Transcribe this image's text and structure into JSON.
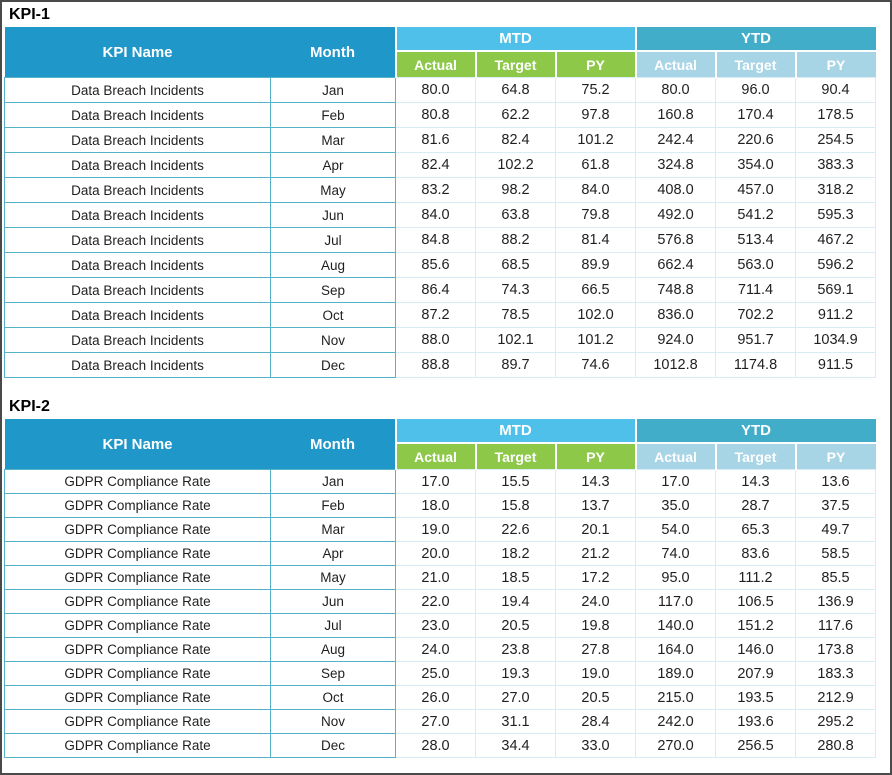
{
  "tables": [
    {
      "section_label": "KPI-1",
      "headers": {
        "kpi_name": "KPI Name",
        "month": "Month",
        "mtd": "MTD",
        "ytd": "YTD",
        "sub": [
          "Actual",
          "Target",
          "PY"
        ]
      },
      "rows": [
        {
          "kpi": "Data Breach Incidents",
          "month": "Jan",
          "values": [
            "80.0",
            "64.8",
            "75.2",
            "80.0",
            "96.0",
            "90.4"
          ]
        },
        {
          "kpi": "Data Breach Incidents",
          "month": "Feb",
          "values": [
            "80.8",
            "62.2",
            "97.8",
            "160.8",
            "170.4",
            "178.5"
          ]
        },
        {
          "kpi": "Data Breach Incidents",
          "month": "Mar",
          "values": [
            "81.6",
            "82.4",
            "101.2",
            "242.4",
            "220.6",
            "254.5"
          ]
        },
        {
          "kpi": "Data Breach Incidents",
          "month": "Apr",
          "values": [
            "82.4",
            "102.2",
            "61.8",
            "324.8",
            "354.0",
            "383.3"
          ]
        },
        {
          "kpi": "Data Breach Incidents",
          "month": "May",
          "values": [
            "83.2",
            "98.2",
            "84.0",
            "408.0",
            "457.0",
            "318.2"
          ]
        },
        {
          "kpi": "Data Breach Incidents",
          "month": "Jun",
          "values": [
            "84.0",
            "63.8",
            "79.8",
            "492.0",
            "541.2",
            "595.3"
          ]
        },
        {
          "kpi": "Data Breach Incidents",
          "month": "Jul",
          "values": [
            "84.8",
            "88.2",
            "81.4",
            "576.8",
            "513.4",
            "467.2"
          ]
        },
        {
          "kpi": "Data Breach Incidents",
          "month": "Aug",
          "values": [
            "85.6",
            "68.5",
            "89.9",
            "662.4",
            "563.0",
            "596.2"
          ]
        },
        {
          "kpi": "Data Breach Incidents",
          "month": "Sep",
          "values": [
            "86.4",
            "74.3",
            "66.5",
            "748.8",
            "711.4",
            "569.1"
          ]
        },
        {
          "kpi": "Data Breach Incidents",
          "month": "Oct",
          "values": [
            "87.2",
            "78.5",
            "102.0",
            "836.0",
            "702.2",
            "911.2"
          ]
        },
        {
          "kpi": "Data Breach Incidents",
          "month": "Nov",
          "values": [
            "88.0",
            "102.1",
            "101.2",
            "924.0",
            "951.7",
            "1034.9"
          ]
        },
        {
          "kpi": "Data Breach Incidents",
          "month": "Dec",
          "values": [
            "88.8",
            "89.7",
            "74.6",
            "1012.8",
            "1174.8",
            "911.5"
          ]
        }
      ]
    },
    {
      "section_label": "KPI-2",
      "headers": {
        "kpi_name": "KPI Name",
        "month": "Month",
        "mtd": "MTD",
        "ytd": "YTD",
        "sub": [
          "Actual",
          "Target",
          "PY"
        ]
      },
      "rows": [
        {
          "kpi": "GDPR Compliance Rate",
          "month": "Jan",
          "values": [
            "17.0",
            "15.5",
            "14.3",
            "17.0",
            "14.3",
            "13.6"
          ]
        },
        {
          "kpi": "GDPR Compliance Rate",
          "month": "Feb",
          "values": [
            "18.0",
            "15.8",
            "13.7",
            "35.0",
            "28.7",
            "37.5"
          ]
        },
        {
          "kpi": "GDPR Compliance Rate",
          "month": "Mar",
          "values": [
            "19.0",
            "22.6",
            "20.1",
            "54.0",
            "65.3",
            "49.7"
          ]
        },
        {
          "kpi": "GDPR Compliance Rate",
          "month": "Apr",
          "values": [
            "20.0",
            "18.2",
            "21.2",
            "74.0",
            "83.6",
            "58.5"
          ]
        },
        {
          "kpi": "GDPR Compliance Rate",
          "month": "May",
          "values": [
            "21.0",
            "18.5",
            "17.2",
            "95.0",
            "111.2",
            "85.5"
          ]
        },
        {
          "kpi": "GDPR Compliance Rate",
          "month": "Jun",
          "values": [
            "22.0",
            "19.4",
            "24.0",
            "117.0",
            "106.5",
            "136.9"
          ]
        },
        {
          "kpi": "GDPR Compliance Rate",
          "month": "Jul",
          "values": [
            "23.0",
            "20.5",
            "19.8",
            "140.0",
            "151.2",
            "117.6"
          ]
        },
        {
          "kpi": "GDPR Compliance Rate",
          "month": "Aug",
          "values": [
            "24.0",
            "23.8",
            "27.8",
            "164.0",
            "146.0",
            "173.8"
          ]
        },
        {
          "kpi": "GDPR Compliance Rate",
          "month": "Sep",
          "values": [
            "25.0",
            "19.3",
            "19.0",
            "189.0",
            "207.9",
            "183.3"
          ]
        },
        {
          "kpi": "GDPR Compliance Rate",
          "month": "Oct",
          "values": [
            "26.0",
            "27.0",
            "20.5",
            "215.0",
            "193.5",
            "212.9"
          ]
        },
        {
          "kpi": "GDPR Compliance Rate",
          "month": "Nov",
          "values": [
            "27.0",
            "31.1",
            "28.4",
            "242.0",
            "193.6",
            "295.2"
          ]
        },
        {
          "kpi": "GDPR Compliance Rate",
          "month": "Dec",
          "values": [
            "28.0",
            "34.4",
            "33.0",
            "270.0",
            "256.5",
            "280.8"
          ]
        }
      ]
    }
  ],
  "colors": {
    "header_blue": "#1f97c9",
    "mtd_group_blue": "#4ec0ea",
    "ytd_group_teal": "#42adc9",
    "mtd_sub_green": "#8dc849",
    "ytd_sub_light_blue": "#a8d5e6",
    "cell_border_teal": "#56b2c6",
    "grid_light_blue": "#d8ecf5",
    "frame_border": "#4a4a4a"
  }
}
